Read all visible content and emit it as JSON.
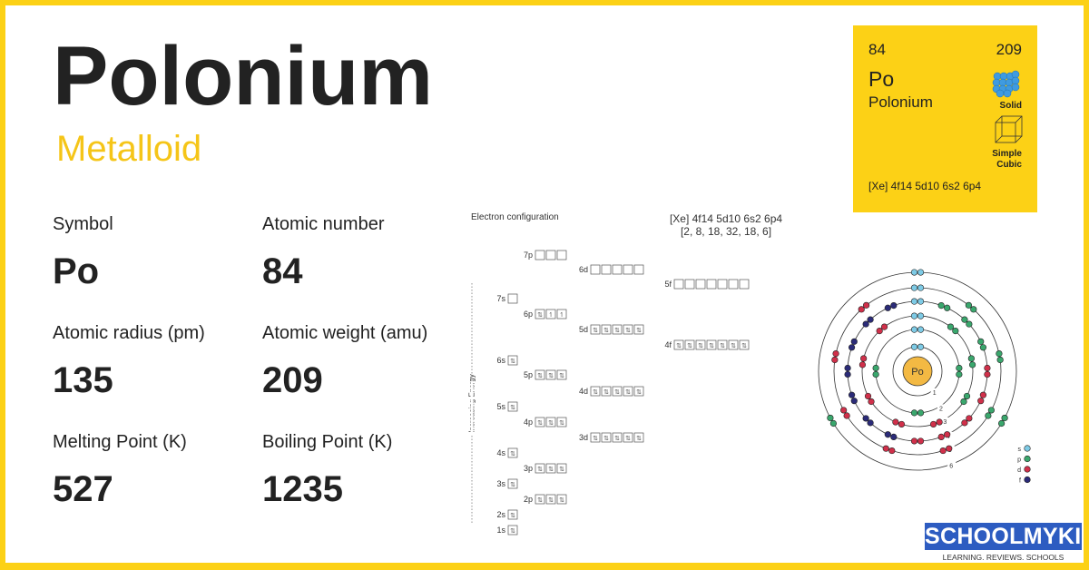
{
  "element": {
    "name": "Polonium",
    "category": "Metalloid"
  },
  "properties": [
    {
      "label": "Symbol",
      "value": "Po"
    },
    {
      "label": "Atomic number",
      "value": "84"
    },
    {
      "label": "Atomic radius (pm)",
      "value": "135"
    },
    {
      "label": "Atomic weight (amu)",
      "value": "209"
    },
    {
      "label": "Melting Point (K)",
      "value": "527"
    },
    {
      "label": "Boiling Point (K)",
      "value": "1235"
    }
  ],
  "card": {
    "number": "84",
    "weight": "209",
    "symbol": "Po",
    "name": "Polonium",
    "state": "Solid",
    "crystal": "Simple Cubic",
    "configuration": "[Xe] 4f14 5d10 6s2 6p4",
    "color": "#fcd116"
  },
  "electron_configuration": {
    "title": "Electron configuration",
    "notation": "[Xe] 4f14 5d10 6s2 6p4",
    "shells": "[2, 8, 18, 32, 18, 6]",
    "axis_label": "Increasing Energy",
    "orbitals": [
      {
        "name": "7p",
        "electrons": 0
      },
      {
        "name": "6d",
        "electrons": 0
      },
      {
        "name": "5f",
        "electrons": 0
      },
      {
        "name": "7s",
        "electrons": 0
      },
      {
        "name": "6p",
        "electrons": 4
      },
      {
        "name": "5d",
        "electrons": 10
      },
      {
        "name": "4f",
        "electrons": 14
      },
      {
        "name": "6s",
        "electrons": 2
      },
      {
        "name": "5p",
        "electrons": 6
      },
      {
        "name": "4d",
        "electrons": 10
      },
      {
        "name": "5s",
        "electrons": 2
      },
      {
        "name": "4p",
        "electrons": 6
      },
      {
        "name": "3d",
        "electrons": 10
      },
      {
        "name": "4s",
        "electrons": 2
      },
      {
        "name": "3p",
        "electrons": 6
      },
      {
        "name": "3s",
        "electrons": 2
      },
      {
        "name": "2p",
        "electrons": 6
      },
      {
        "name": "2s",
        "electrons": 2
      },
      {
        "name": "1s",
        "electrons": 2
      }
    ]
  },
  "bohr_model": {
    "nucleus": "Po",
    "shells": [
      {
        "label": "1",
        "s": 2,
        "p": 0,
        "d": 0,
        "f": 0
      },
      {
        "label": "2",
        "s": 2,
        "p": 6,
        "d": 0,
        "f": 0
      },
      {
        "label": "3",
        "s": 2,
        "p": 6,
        "d": 10,
        "f": 0
      },
      {
        "label": "4",
        "s": 2,
        "p": 6,
        "d": 10,
        "f": 14
      },
      {
        "label": "5",
        "s": 2,
        "p": 6,
        "d": 10,
        "f": 0
      },
      {
        "label": "6",
        "s": 2,
        "p": 4,
        "d": 0,
        "f": 0
      }
    ],
    "legend": [
      {
        "label": "s",
        "color": "#7ecbe6"
      },
      {
        "label": "p",
        "color": "#3aa76d"
      },
      {
        "label": "d",
        "color": "#d0304a"
      },
      {
        "label": "f",
        "color": "#2b2b78"
      }
    ],
    "nucleus_color": "#f3b943"
  },
  "logo": {
    "name": "SCHOOLMYKIDS",
    "tagline": "LEARNING. REVIEWS. SCHOOLS"
  }
}
